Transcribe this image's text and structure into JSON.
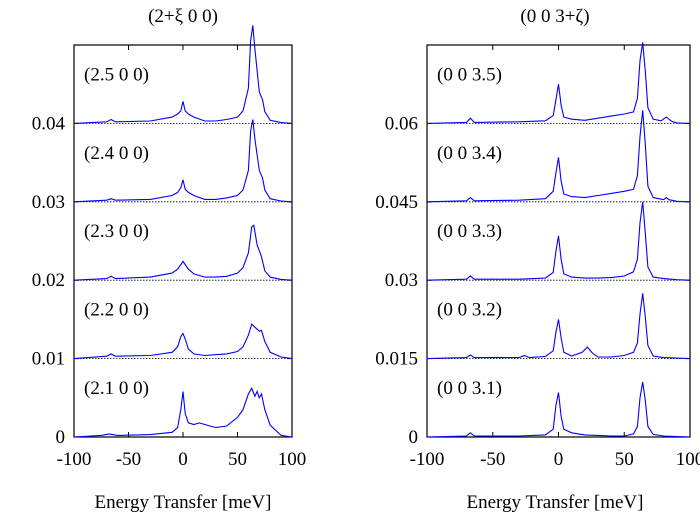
{
  "chart_data": [
    {
      "type": "line",
      "title": "(2+ξ 0 0)",
      "xlabel": "Energy Transfer  [meV]",
      "ylabel": "",
      "xlim": [
        -100,
        100
      ],
      "ylim": [
        0,
        0.05
      ],
      "x_ticks": [
        -100,
        -50,
        0,
        50,
        100
      ],
      "x_tick_labels": [
        "-100",
        "-50",
        "0",
        "50",
        "100"
      ],
      "y_ticks": [
        0,
        0.01,
        0.02,
        0.03,
        0.04
      ],
      "y_tick_labels": [
        "0",
        "0.01",
        "0.02",
        "0.03",
        "0.04"
      ],
      "line_color": "#0000ff",
      "series": [
        {
          "name": "(2.1 0 0)",
          "offset": 0.0,
          "x": [
            -100,
            -75,
            -68,
            -60,
            -30,
            -10,
            -5,
            -2,
            0,
            2,
            5,
            10,
            15,
            20,
            30,
            40,
            50,
            55,
            60,
            63,
            66,
            68,
            70,
            72,
            75,
            80,
            90,
            100
          ],
          "y": [
            0,
            0.0002,
            0.0004,
            0.0002,
            0.0003,
            0.0006,
            0.0012,
            0.0035,
            0.0058,
            0.003,
            0.0018,
            0.0016,
            0.0018,
            0.0016,
            0.0012,
            0.0014,
            0.0025,
            0.0035,
            0.0055,
            0.0062,
            0.0052,
            0.0058,
            0.005,
            0.0055,
            0.0035,
            0.0015,
            0.0002,
            0
          ]
        },
        {
          "name": "(2.2 0 0)",
          "offset": 0.01,
          "x": [
            -100,
            -70,
            -66,
            -62,
            -30,
            -10,
            -5,
            -2,
            0,
            2,
            5,
            10,
            20,
            30,
            40,
            50,
            55,
            60,
            63,
            66,
            70,
            72,
            75,
            80,
            90,
            100
          ],
          "y": [
            0,
            0.0003,
            0.0006,
            0.0003,
            0.0004,
            0.0008,
            0.0015,
            0.0028,
            0.0032,
            0.0025,
            0.0012,
            0.0006,
            0.0004,
            0.0005,
            0.0006,
            0.0009,
            0.0015,
            0.003,
            0.0044,
            0.004,
            0.0035,
            0.0036,
            0.0022,
            0.0008,
            0.0002,
            0
          ]
        },
        {
          "name": "(2.3 0 0)",
          "offset": 0.02,
          "x": [
            -100,
            -70,
            -66,
            -62,
            -30,
            -10,
            -5,
            0,
            5,
            10,
            20,
            30,
            40,
            50,
            55,
            60,
            63,
            65,
            68,
            72,
            75,
            80,
            90,
            100
          ],
          "y": [
            0,
            0.0002,
            0.0005,
            0.0002,
            0.0004,
            0.0009,
            0.0014,
            0.0024,
            0.0014,
            0.0008,
            0.0004,
            0.0004,
            0.0005,
            0.0009,
            0.0016,
            0.0035,
            0.0068,
            0.007,
            0.0045,
            0.003,
            0.0012,
            0.0004,
            0.0001,
            0
          ]
        },
        {
          "name": "(2.4 0 0)",
          "offset": 0.03,
          "x": [
            -100,
            -70,
            -66,
            -62,
            -30,
            -10,
            -5,
            -2,
            0,
            2,
            5,
            10,
            20,
            30,
            40,
            50,
            55,
            60,
            62,
            64,
            66,
            70,
            73,
            75,
            80,
            90,
            100
          ],
          "y": [
            0,
            0.0002,
            0.0004,
            0.0002,
            0.0003,
            0.0008,
            0.0012,
            0.0018,
            0.0028,
            0.0016,
            0.0012,
            0.0008,
            0.0003,
            0.0003,
            0.0005,
            0.0008,
            0.0015,
            0.004,
            0.009,
            0.0105,
            0.008,
            0.004,
            0.003,
            0.0015,
            0.0004,
            0.0001,
            0
          ]
        },
        {
          "name": "(2.5 0 0)",
          "offset": 0.04,
          "x": [
            -100,
            -70,
            -66,
            -62,
            -30,
            -10,
            -5,
            -2,
            0,
            2,
            5,
            10,
            20,
            30,
            40,
            50,
            55,
            60,
            62,
            64,
            66,
            70,
            73,
            75,
            80,
            90,
            100
          ],
          "y": [
            0,
            0.0002,
            0.0005,
            0.0002,
            0.0003,
            0.0008,
            0.0012,
            0.0016,
            0.0028,
            0.0016,
            0.0012,
            0.0008,
            0.0003,
            0.0003,
            0.0005,
            0.0008,
            0.0016,
            0.0045,
            0.0105,
            0.0125,
            0.0095,
            0.004,
            0.003,
            0.0015,
            0.0004,
            0.0001,
            0
          ]
        }
      ]
    },
    {
      "type": "line",
      "title": "(0 0 3+ζ)",
      "xlabel": "Energy Transfer  [meV]",
      "ylabel": "",
      "xlim": [
        -100,
        100
      ],
      "ylim": [
        0,
        0.075
      ],
      "x_ticks": [
        -100,
        -50,
        0,
        50,
        100
      ],
      "x_tick_labels": [
        "-100",
        "-50",
        "0",
        "50",
        "100"
      ],
      "y_ticks": [
        0,
        0.015,
        0.03,
        0.045,
        0.06
      ],
      "y_tick_labels": [
        "0",
        "0.015",
        "0.03",
        "0.045",
        "0.06"
      ],
      "line_color": "#0000ff",
      "series": [
        {
          "name": "(0 0 3.1)",
          "offset": 0.0,
          "x": [
            -100,
            -70,
            -67,
            -64,
            -30,
            -10,
            -4,
            -2,
            0,
            2,
            4,
            10,
            20,
            30,
            40,
            50,
            57,
            60,
            62,
            64,
            66,
            68,
            72,
            80,
            90,
            100
          ],
          "y": [
            0,
            0.0002,
            0.0008,
            0.0002,
            0.0002,
            0.0004,
            0.0015,
            0.006,
            0.0085,
            0.004,
            0.0015,
            0.0008,
            0.0004,
            0.0003,
            0.0002,
            0.0002,
            0.0006,
            0.002,
            0.0075,
            0.0105,
            0.007,
            0.002,
            0.0005,
            0.0002,
            0.0001,
            0
          ]
        },
        {
          "name": "(0 0 3.2)",
          "offset": 0.015,
          "x": [
            -100,
            -70,
            -67,
            -64,
            -30,
            -26,
            -22,
            -10,
            -4,
            -2,
            0,
            2,
            4,
            10,
            18,
            22,
            26,
            30,
            40,
            50,
            57,
            60,
            62,
            64,
            66,
            68,
            72,
            80,
            90,
            100
          ],
          "y": [
            0,
            0.0002,
            0.0007,
            0.0002,
            0.0002,
            0.0006,
            0.0002,
            0.0004,
            0.0015,
            0.005,
            0.0075,
            0.004,
            0.0012,
            0.0005,
            0.0012,
            0.0022,
            0.001,
            0.0003,
            0.0003,
            0.0006,
            0.0012,
            0.003,
            0.0085,
            0.0125,
            0.008,
            0.0025,
            0.0005,
            0.0002,
            0.0001,
            0
          ]
        },
        {
          "name": "(0 0 3.3)",
          "offset": 0.03,
          "x": [
            -100,
            -70,
            -67,
            -64,
            -30,
            -10,
            -4,
            -2,
            0,
            2,
            4,
            10,
            20,
            30,
            40,
            50,
            57,
            60,
            62,
            64,
            66,
            68,
            72,
            80,
            90,
            100
          ],
          "y": [
            0,
            0.0002,
            0.0008,
            0.0002,
            0.0002,
            0.0004,
            0.0015,
            0.0055,
            0.0085,
            0.004,
            0.0012,
            0.0006,
            0.0004,
            0.0004,
            0.0005,
            0.0008,
            0.0016,
            0.004,
            0.011,
            0.015,
            0.009,
            0.0025,
            0.0006,
            0.0003,
            0.0001,
            0
          ]
        },
        {
          "name": "(0 0 3.4)",
          "offset": 0.045,
          "x": [
            -100,
            -70,
            -67,
            -64,
            -30,
            -10,
            -4,
            -2,
            0,
            2,
            4,
            10,
            20,
            30,
            40,
            50,
            57,
            60,
            62,
            64,
            66,
            68,
            72,
            80,
            82,
            84,
            90,
            100
          ],
          "y": [
            0,
            0.0002,
            0.0008,
            0.0002,
            0.0003,
            0.0006,
            0.002,
            0.0055,
            0.0085,
            0.004,
            0.0015,
            0.001,
            0.0008,
            0.0012,
            0.0016,
            0.002,
            0.0024,
            0.005,
            0.0125,
            0.0175,
            0.011,
            0.003,
            0.0008,
            0.0004,
            0.0008,
            0.0004,
            0.0001,
            0
          ]
        },
        {
          "name": "(0 0 3.5)",
          "offset": 0.06,
          "x": [
            -100,
            -70,
            -67,
            -64,
            -30,
            -10,
            -4,
            -2,
            0,
            2,
            4,
            10,
            20,
            30,
            40,
            50,
            57,
            60,
            62,
            64,
            66,
            68,
            72,
            78,
            82,
            86,
            90,
            100
          ],
          "y": [
            0,
            0.0002,
            0.001,
            0.0002,
            0.0003,
            0.0005,
            0.0015,
            0.0045,
            0.0075,
            0.0035,
            0.0012,
            0.0008,
            0.0006,
            0.001,
            0.0014,
            0.0018,
            0.0022,
            0.0048,
            0.012,
            0.0155,
            0.01,
            0.003,
            0.0008,
            0.0005,
            0.0012,
            0.0004,
            0.0001,
            0
          ]
        }
      ]
    }
  ]
}
